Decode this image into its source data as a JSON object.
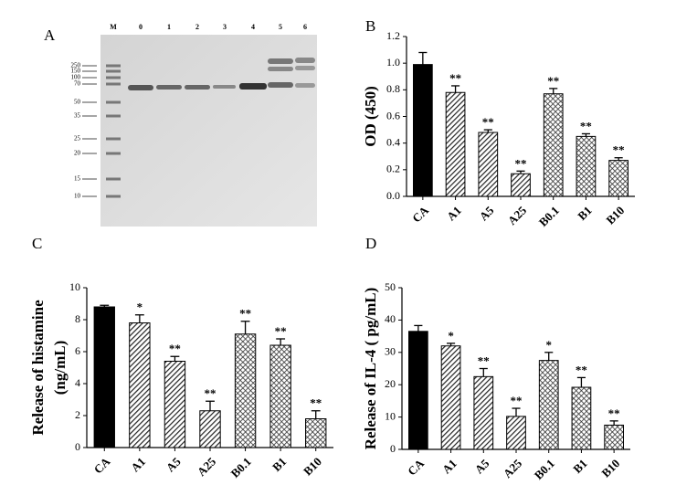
{
  "gel": {
    "panel": "A",
    "lanes": [
      "M",
      "0",
      "1",
      "2",
      "3",
      "4",
      "5",
      "6"
    ],
    "markers": [
      250,
      150,
      100,
      70,
      50,
      35,
      25,
      20,
      15,
      10
    ]
  },
  "chart_data": [
    {
      "type": "bar",
      "panel": "B",
      "ylabel": "OD (450)",
      "categories": [
        "CA",
        "A1",
        "A5",
        "A25",
        "B0.1",
        "B1",
        "B10"
      ],
      "values": [
        0.99,
        0.78,
        0.48,
        0.17,
        0.77,
        0.45,
        0.27
      ],
      "errors": [
        0.09,
        0.05,
        0.02,
        0.02,
        0.04,
        0.02,
        0.02
      ],
      "significance": [
        null,
        "**",
        "**",
        "**",
        "**",
        "**",
        "**"
      ],
      "ylim": [
        0,
        1.2
      ],
      "yticks": [
        {
          "value": 0,
          "label": "0.0"
        },
        {
          "value": 0.2,
          "label": "0.2"
        },
        {
          "value": 0.4,
          "label": "0.4"
        },
        {
          "value": 0.6,
          "label": "0.6"
        },
        {
          "value": 0.8,
          "label": "0.8"
        },
        {
          "value": 1,
          "label": "1.0"
        },
        {
          "value": 1.2,
          "label": "1.2"
        }
      ]
    },
    {
      "type": "bar",
      "panel": "C",
      "ylabel": [
        "Release of histamine",
        "(ng/mL)"
      ],
      "categories": [
        "CA",
        "A1",
        "A5",
        "A25",
        "B0.1",
        "B1",
        "B10"
      ],
      "values": [
        8.8,
        7.8,
        5.4,
        2.3,
        7.1,
        6.4,
        1.8
      ],
      "errors": [
        0.1,
        0.5,
        0.3,
        0.6,
        0.8,
        0.4,
        0.5
      ],
      "significance": [
        null,
        "*",
        "**",
        "**",
        "**",
        "**",
        "**"
      ],
      "ylim": [
        0,
        10
      ],
      "yticks": [
        0,
        2,
        4,
        6,
        8,
        10
      ]
    },
    {
      "type": "bar",
      "panel": "D",
      "ylabel": "Release of IL-4 ( pg/mL)",
      "categories": [
        "CA",
        "A1",
        "A5",
        "A25",
        "B0.1",
        "B1",
        "B10"
      ],
      "values": [
        36.5,
        32,
        22.5,
        10.2,
        27.5,
        19.2,
        7.5
      ],
      "errors": [
        1.8,
        0.8,
        2.5,
        2.5,
        2.5,
        3,
        1.3
      ],
      "significance": [
        null,
        "*",
        "**",
        "**",
        "*",
        "**",
        "**"
      ],
      "ylim": [
        0,
        50
      ],
      "yticks": [
        0,
        10,
        20,
        30,
        40,
        50
      ]
    }
  ]
}
